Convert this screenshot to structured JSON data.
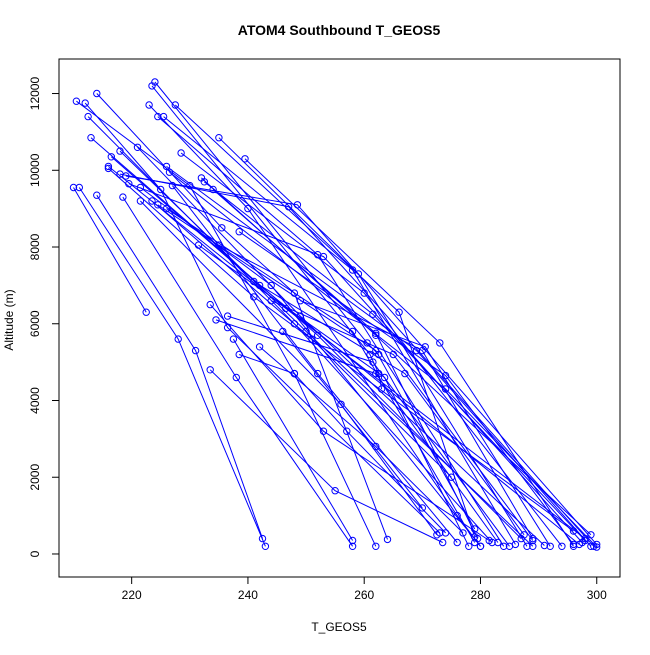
{
  "chart_data": {
    "type": "line",
    "title": "ATOM4 Southbound T_GEOS5",
    "xlabel": "T_GEOS5",
    "ylabel": "Altitude (m)",
    "xlim": [
      207.5,
      304
    ],
    "ylim": [
      -600,
      12900
    ],
    "xticks": [
      220,
      240,
      260,
      280,
      300
    ],
    "yticks": [
      0,
      2000,
      4000,
      6000,
      8000,
      10000,
      12000
    ],
    "grid": false,
    "legend": "none",
    "colors": {
      "series": "#0000ff",
      "axis": "#000000",
      "background": "#ffffff"
    },
    "series": [
      {
        "x": [
          224.0,
          260.5,
          262.5
        ],
        "y": [
          12300,
          5500,
          5200
        ]
      },
      {
        "x": [
          223.5,
          261.0,
          262.5,
          263.0
        ],
        "y": [
          12200,
          5200,
          4700,
          4300
        ]
      },
      {
        "x": [
          214.0,
          235.5,
          248.0,
          264.0
        ],
        "y": [
          12000,
          8500,
          6800,
          380
        ]
      },
      {
        "x": [
          210.5,
          230.0,
          248.0,
          257.0,
          274.0
        ],
        "y": [
          11800,
          9600,
          4700,
          3200,
          550
        ]
      },
      {
        "x": [
          212.0,
          225.0,
          236.5,
          273.0
        ],
        "y": [
          11750,
          9500,
          5900,
          550
        ]
      },
      {
        "x": [
          223.0,
          240.0,
          276.0,
          280.0
        ],
        "y": [
          11700,
          9000,
          1000,
          200
        ]
      },
      {
        "x": [
          227.5,
          266.0,
          279.0
        ],
        "y": [
          11700,
          6300,
          450
        ]
      },
      {
        "x": [
          212.5,
          248.0,
          282.0
        ],
        "y": [
          11400,
          6000,
          300
        ]
      },
      {
        "x": [
          224.5,
          252.0,
          284.0
        ],
        "y": [
          11400,
          7800,
          200
        ]
      },
      {
        "x": [
          225.5,
          258.0,
          286.0
        ],
        "y": [
          11400,
          7400,
          250
        ]
      },
      {
        "x": [
          213.0,
          252.0,
          287.0
        ],
        "y": [
          10850,
          5700,
          400
        ]
      },
      {
        "x": [
          235.0,
          259.0,
          288.0
        ],
        "y": [
          10850,
          7300,
          200
        ]
      },
      {
        "x": [
          218.0,
          250.0,
          289.0
        ],
        "y": [
          10500,
          5800,
          200
        ]
      },
      {
        "x": [
          221.0,
          249.0,
          291.0
        ],
        "y": [
          10600,
          6200,
          220
        ]
      },
      {
        "x": [
          228.5,
          260.0,
          294.0
        ],
        "y": [
          10450,
          6800,
          200
        ]
      },
      {
        "x": [
          239.5,
          273.0,
          296.0
        ],
        "y": [
          10300,
          5500,
          200
        ]
      },
      {
        "x": [
          216.5,
          242.0,
          297.0
        ],
        "y": [
          10350,
          7000,
          250
        ]
      },
      {
        "x": [
          216.0,
          241.0,
          296.0
        ],
        "y": [
          10050,
          6700,
          600
        ]
      },
      {
        "x": [
          216.0,
          246.5,
          298.0
        ],
        "y": [
          10100,
          6400,
          400
        ]
      },
      {
        "x": [
          226.0,
          269.0,
          299.0
        ],
        "y": [
          10100,
          5300,
          200
        ]
      },
      {
        "x": [
          226.5,
          274.0,
          300.0
        ],
        "y": [
          9950,
          4300,
          180
        ]
      },
      {
        "x": [
          218.0,
          247.0,
          299.5
        ],
        "y": [
          9900,
          9050,
          200
        ]
      },
      {
        "x": [
          219.0,
          248.5,
          300.0
        ],
        "y": [
          9850,
          9100,
          250
        ]
      },
      {
        "x": [
          232.0,
          262.0,
          299.0
        ],
        "y": [
          9800,
          5700,
          500
        ]
      },
      {
        "x": [
          232.5,
          261.5,
          298.0
        ],
        "y": [
          9700,
          6250,
          350
        ]
      },
      {
        "x": [
          219.5,
          253.0,
          297.5
        ],
        "y": [
          9650,
          7750,
          300
        ]
      },
      {
        "x": [
          221.5,
          244.0,
          280.0
        ],
        "y": [
          9550,
          7000,
          200
        ]
      },
      {
        "x": [
          227.0,
          252.0,
          276.0
        ],
        "y": [
          9600,
          4700,
          300
        ]
      },
      {
        "x": [
          210.0,
          222.5
        ],
        "y": [
          9550,
          6300
        ]
      },
      {
        "x": [
          211.0,
          228.0,
          243.0
        ],
        "y": [
          9550,
          5600,
          200
        ]
      },
      {
        "x": [
          234.0,
          262.0,
          279.5
        ],
        "y": [
          9500,
          5750,
          400
        ]
      },
      {
        "x": [
          214.0,
          231.0,
          242.5
        ],
        "y": [
          9350,
          5300,
          400
        ]
      },
      {
        "x": [
          218.5,
          238.0,
          258.0
        ],
        "y": [
          9300,
          4600,
          200
        ]
      },
      {
        "x": [
          221.5,
          256.0,
          272.5
        ],
        "y": [
          9200,
          3900,
          500
        ]
      },
      {
        "x": [
          223.5,
          251.0,
          275.0
        ],
        "y": [
          9200,
          5600,
          2000
        ]
      },
      {
        "x": [
          224.5,
          262.0,
          279.0
        ],
        "y": [
          9100,
          5300,
          650
        ]
      },
      {
        "x": [
          226.0,
          258.0,
          279.0
        ],
        "y": [
          9000,
          5800,
          300
        ]
      },
      {
        "x": [
          231.5,
          263.5,
          278.0
        ],
        "y": [
          8050,
          4600,
          200
        ]
      },
      {
        "x": [
          235.0,
          270.0,
          289.0
        ],
        "y": [
          8050,
          5300,
          400
        ]
      },
      {
        "x": [
          238.5,
          274.0,
          296.0
        ],
        "y": [
          8400,
          4650,
          250
        ]
      },
      {
        "x": [
          241.0,
          267.0,
          287.5
        ],
        "y": [
          7100,
          4700,
          500
        ]
      },
      {
        "x": [
          244.0,
          265.0,
          289.0
        ],
        "y": [
          6600,
          5200,
          350
        ]
      },
      {
        "x": [
          249.0,
          270.5,
          292.0
        ],
        "y": [
          6600,
          5400,
          200
        ]
      },
      {
        "x": [
          233.5,
          253.0,
          281.5
        ],
        "y": [
          6500,
          3200,
          350
        ]
      },
      {
        "x": [
          234.5,
          262.0,
          283.0
        ],
        "y": [
          6100,
          4700,
          300
        ]
      },
      {
        "x": [
          236.5,
          261.5,
          285.0
        ],
        "y": [
          6200,
          5000,
          200
        ]
      },
      {
        "x": [
          238.5,
          248.0,
          262.0
        ],
        "y": [
          5200,
          4700,
          200
        ]
      },
      {
        "x": [
          233.5,
          255.0,
          273.5
        ],
        "y": [
          4800,
          1650,
          300
        ]
      },
      {
        "x": [
          237.5,
          258.0
        ],
        "y": [
          5600,
          350
        ]
      },
      {
        "x": [
          242.0,
          262.0,
          277.0
        ],
        "y": [
          5400,
          2800,
          550
        ]
      },
      {
        "x": [
          246.0,
          270.0
        ],
        "y": [
          5800,
          1200
        ]
      }
    ]
  }
}
